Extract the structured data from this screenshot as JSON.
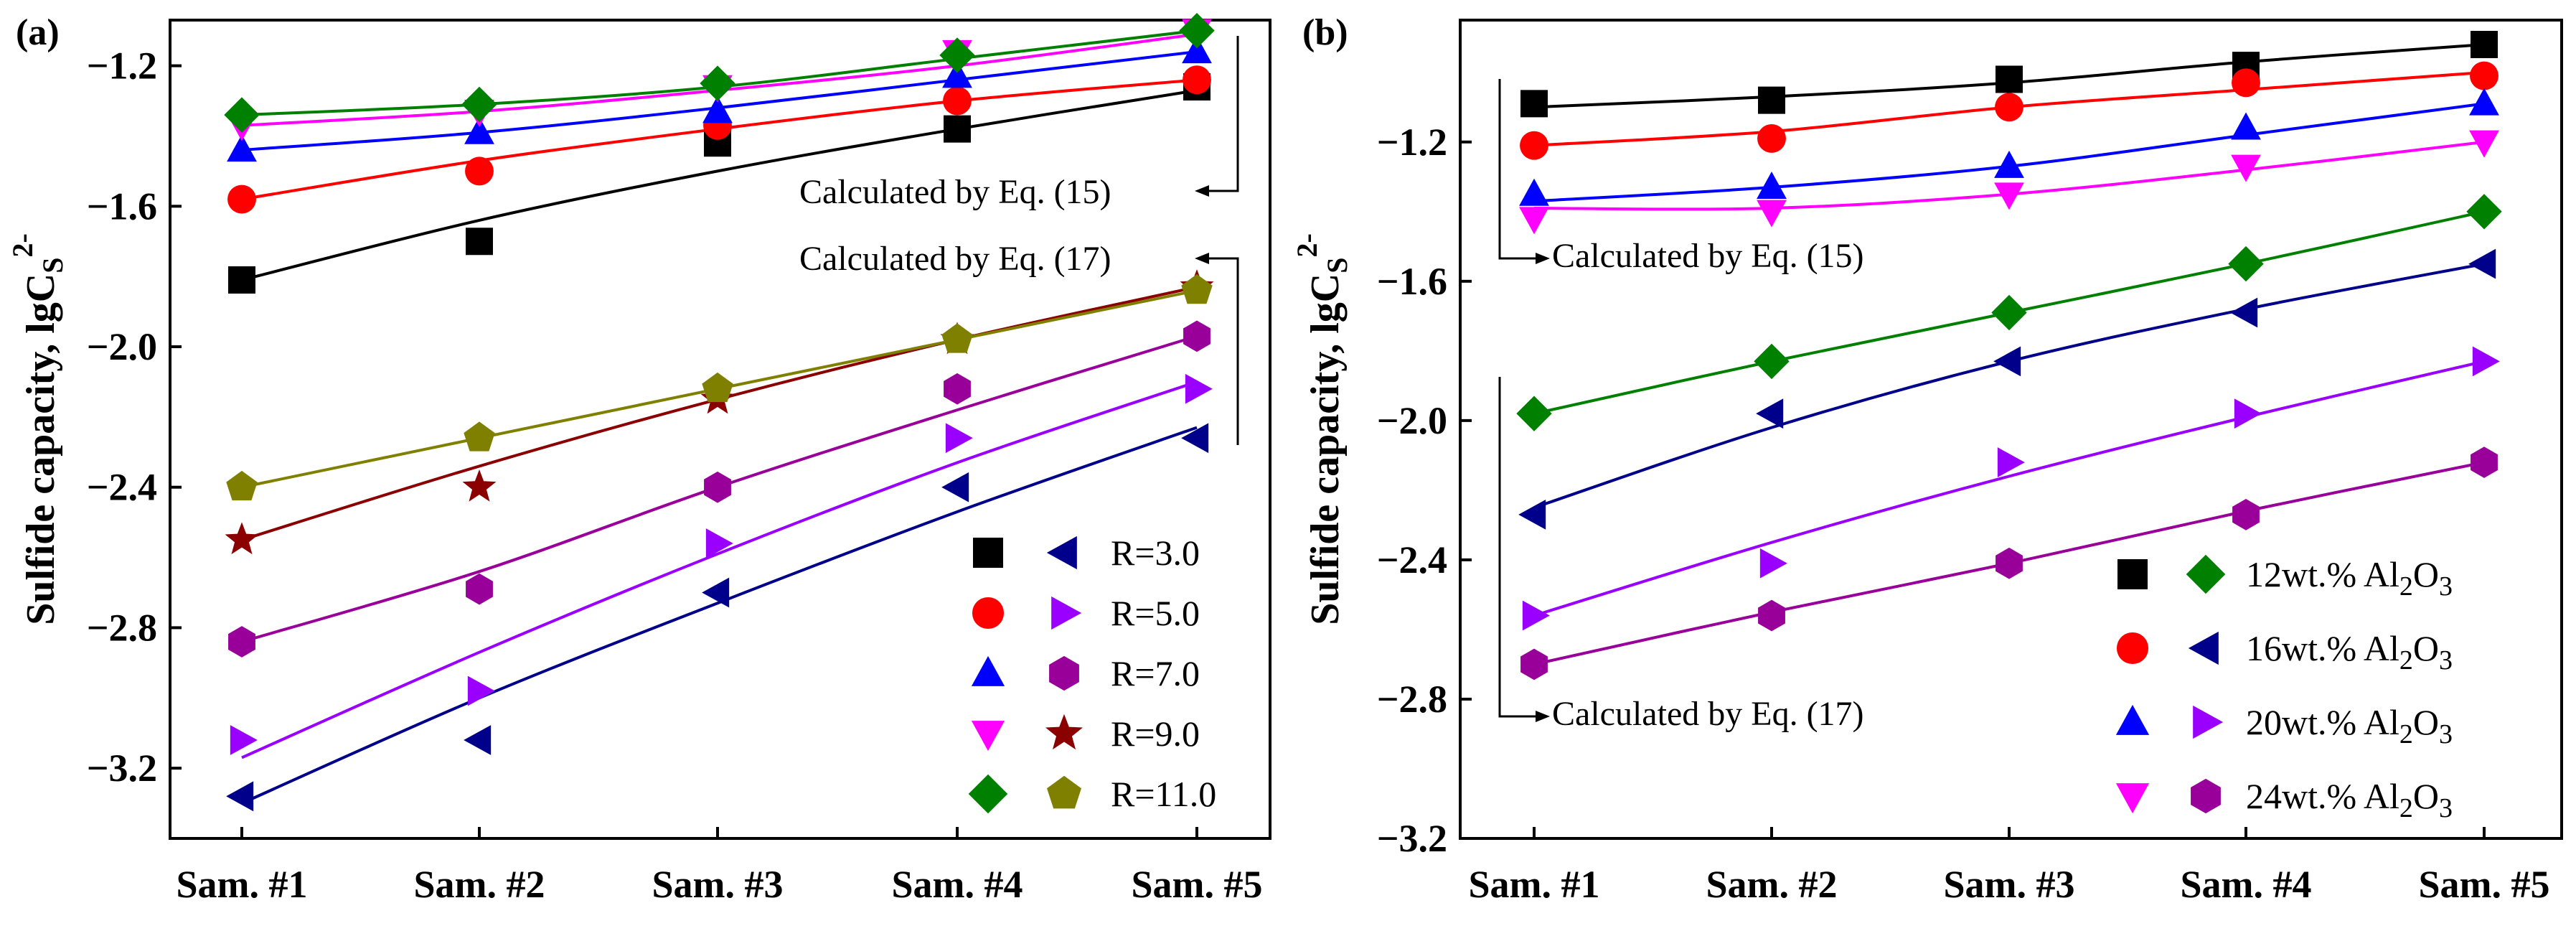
{
  "chart_data": [
    {
      "type": "scatter",
      "panel": "(a)",
      "title": "",
      "xlabel": "",
      "ylabel": "Sulfide capacity, lgC",
      "ylabel_sub": "S",
      "ylabel_sup": "2-",
      "categories": [
        "Sam. #1",
        "Sam. #2",
        "Sam. #3",
        "Sam. #4",
        "Sam. #5"
      ],
      "ylim": [
        -3.4,
        -1.07
      ],
      "yticks": [
        -3.2,
        -2.8,
        -2.4,
        -2.0,
        -1.6,
        -1.2
      ],
      "ytick_labels": [
        "−3.2",
        "−2.8",
        "−2.4",
        "−2.0",
        "−1.6",
        "−1.2"
      ],
      "series": [
        {
          "name": "R=3.0 (Eq.15)",
          "marker": "square",
          "color": "#000000",
          "values": [
            -1.81,
            -1.7,
            -1.42,
            -1.38,
            -1.26
          ],
          "fit": [
            -1.81,
            -1.64,
            -1.5,
            -1.38,
            -1.27
          ]
        },
        {
          "name": "R=5.0 (Eq.15)",
          "marker": "circle",
          "color": "#ff0000",
          "values": [
            -1.58,
            -1.5,
            -1.37,
            -1.3,
            -1.24
          ],
          "fit": [
            -1.58,
            -1.47,
            -1.38,
            -1.3,
            -1.24
          ]
        },
        {
          "name": "R=7.0 (Eq.15)",
          "marker": "triangle-up",
          "color": "#0000ff",
          "values": [
            -1.44,
            -1.39,
            -1.33,
            -1.23,
            -1.16
          ],
          "fit": [
            -1.44,
            -1.39,
            -1.32,
            -1.24,
            -1.16
          ]
        },
        {
          "name": "R=9.0 (Eq.15)",
          "marker": "triangle-down",
          "color": "#ff00ff",
          "values": [
            -1.37,
            -1.33,
            -1.26,
            -1.16,
            -1.1
          ],
          "fit": [
            -1.37,
            -1.33,
            -1.27,
            -1.2,
            -1.11
          ]
        },
        {
          "name": "R=11.0 (Eq.15)",
          "marker": "diamond",
          "color": "#008000",
          "values": [
            -1.34,
            -1.31,
            -1.25,
            -1.17,
            -1.1
          ],
          "fit": [
            -1.34,
            -1.31,
            -1.26,
            -1.18,
            -1.1
          ]
        },
        {
          "name": "R=3.0 (Eq.17)",
          "marker": "triangle-left",
          "color": "#00008b",
          "values": [
            -3.28,
            -3.12,
            -2.7,
            -2.4,
            -2.26
          ],
          "fit": [
            -3.3,
            -3.0,
            -2.73,
            -2.47,
            -2.23
          ]
        },
        {
          "name": "R=5.0 (Eq.17)",
          "marker": "triangle-right",
          "color": "#9900ff",
          "values": [
            -3.12,
            -2.98,
            -2.56,
            -2.26,
            -2.12
          ],
          "fit": [
            -3.17,
            -2.87,
            -2.59,
            -2.33,
            -2.1
          ]
        },
        {
          "name": "R=7.0 (Eq.17)",
          "marker": "hexagon",
          "color": "#990099",
          "values": [
            -2.84,
            -2.69,
            -2.4,
            -2.12,
            -1.97
          ],
          "fit": [
            -2.84,
            -2.64,
            -2.4,
            -2.18,
            -1.97
          ]
        },
        {
          "name": "R=9.0 (Eq.17)",
          "marker": "star",
          "color": "#8b0000",
          "values": [
            -2.55,
            -2.4,
            -2.15,
            -1.98,
            -1.83
          ],
          "fit": [
            -2.55,
            -2.34,
            -2.15,
            -1.98,
            -1.83
          ]
        },
        {
          "name": "R=11.0 (Eq.17)",
          "marker": "pentagon",
          "color": "#808000",
          "values": [
            -2.4,
            -2.26,
            -2.12,
            -1.98,
            -1.84
          ],
          "fit": [
            -2.4,
            -2.26,
            -2.12,
            -1.98,
            -1.84
          ]
        }
      ],
      "legend": {
        "placement": "bottom-right",
        "entries": [
          {
            "label": "R=3.0",
            "markers": [
              "square",
              "triangle-left"
            ],
            "colors": [
              "#000000",
              "#00008b"
            ]
          },
          {
            "label": "R=5.0",
            "markers": [
              "circle",
              "triangle-right"
            ],
            "colors": [
              "#ff0000",
              "#9900ff"
            ]
          },
          {
            "label": "R=7.0",
            "markers": [
              "triangle-up",
              "hexagon"
            ],
            "colors": [
              "#0000ff",
              "#990099"
            ]
          },
          {
            "label": "R=9.0",
            "markers": [
              "triangle-down",
              "star"
            ],
            "colors": [
              "#ff00ff",
              "#8b0000"
            ]
          },
          {
            "label": "R=11.0",
            "markers": [
              "diamond",
              "pentagon"
            ],
            "colors": [
              "#008000",
              "#808000"
            ]
          }
        ]
      },
      "annotations": [
        "Calculated by Eq. (15)",
        "Calculated by Eq. (17)"
      ]
    },
    {
      "type": "scatter",
      "panel": "(b)",
      "title": "",
      "xlabel": "",
      "ylabel": "Sulfide capacity, lgC",
      "ylabel_sub": "S",
      "ylabel_sup": "2-",
      "categories": [
        "Sam. #1",
        "Sam. #2",
        "Sam. #3",
        "Sam. #4",
        "Sam. #5"
      ],
      "ylim": [
        -3.2,
        -0.85
      ],
      "yticks": [
        -3.2,
        -2.8,
        -2.4,
        -2.0,
        -1.6,
        -1.2
      ],
      "ytick_labels": [
        "−3.2",
        "−2.8",
        "−2.4",
        "−2.0",
        "−1.6",
        "−1.2"
      ],
      "series": [
        {
          "name": "12wt.% Al2O3 (Eq.15)",
          "marker": "square",
          "color": "#000000",
          "values": [
            -1.09,
            -1.08,
            -1.02,
            -0.98,
            -0.92
          ],
          "fit": [
            -1.1,
            -1.07,
            -1.03,
            -0.97,
            -0.92
          ]
        },
        {
          "name": "16wt.% Al2O3 (Eq.15)",
          "marker": "circle",
          "color": "#ff0000",
          "values": [
            -1.21,
            -1.19,
            -1.1,
            -1.03,
            -1.01
          ],
          "fit": [
            -1.21,
            -1.17,
            -1.1,
            -1.05,
            -1.0
          ]
        },
        {
          "name": "20wt.% Al2O3 (Eq.15)",
          "marker": "triangle-up",
          "color": "#0000ff",
          "values": [
            -1.35,
            -1.33,
            -1.27,
            -1.16,
            -1.09
          ],
          "fit": [
            -1.37,
            -1.33,
            -1.27,
            -1.18,
            -1.09
          ]
        },
        {
          "name": "24wt.% Al2O3 (Eq.15)",
          "marker": "triangle-down",
          "color": "#ff00ff",
          "values": [
            -1.42,
            -1.4,
            -1.35,
            -1.27,
            -1.2
          ],
          "fit": [
            -1.39,
            -1.39,
            -1.35,
            -1.28,
            -1.2
          ]
        },
        {
          "name": "12wt.% Al2O3 (Eq.17)",
          "marker": "diamond",
          "color": "#008000",
          "values": [
            -1.98,
            -1.83,
            -1.69,
            -1.55,
            -1.4
          ],
          "fit": [
            -1.98,
            -1.83,
            -1.69,
            -1.55,
            -1.4
          ]
        },
        {
          "name": "16wt.% Al2O3 (Eq.17)",
          "marker": "triangle-left",
          "color": "#00008b",
          "values": [
            -2.27,
            -1.98,
            -1.83,
            -1.69,
            -1.55
          ],
          "fit": [
            -2.25,
            -2.02,
            -1.83,
            -1.68,
            -1.55
          ]
        },
        {
          "name": "20wt.% Al2O3 (Eq.17)",
          "marker": "triangle-right",
          "color": "#9900ff",
          "values": [
            -2.56,
            -2.41,
            -2.12,
            -1.98,
            -1.83
          ],
          "fit": [
            -2.56,
            -2.35,
            -2.16,
            -1.99,
            -1.83
          ]
        },
        {
          "name": "24wt.% Al2O3 (Eq.17)",
          "marker": "hexagon",
          "color": "#990099",
          "values": [
            -2.7,
            -2.56,
            -2.41,
            -2.27,
            -2.12
          ],
          "fit": [
            -2.7,
            -2.55,
            -2.41,
            -2.26,
            -2.12
          ]
        }
      ],
      "legend": {
        "placement": "bottom-right",
        "entries": [
          {
            "label": "12wt.% Al",
            "sub1": "2",
            "mid": "O",
            "sub2": "3",
            "markers": [
              "square",
              "diamond"
            ],
            "colors": [
              "#000000",
              "#008000"
            ]
          },
          {
            "label": "16wt.% Al",
            "sub1": "2",
            "mid": "O",
            "sub2": "3",
            "markers": [
              "circle",
              "triangle-left"
            ],
            "colors": [
              "#ff0000",
              "#00008b"
            ]
          },
          {
            "label": "20wt.% Al",
            "sub1": "2",
            "mid": "O",
            "sub2": "3",
            "markers": [
              "triangle-up",
              "triangle-right"
            ],
            "colors": [
              "#0000ff",
              "#9900ff"
            ]
          },
          {
            "label": "24wt.% Al",
            "sub1": "2",
            "mid": "O",
            "sub2": "3",
            "markers": [
              "triangle-down",
              "hexagon"
            ],
            "colors": [
              "#ff00ff",
              "#990099"
            ]
          }
        ]
      },
      "annotations": [
        "Calculated by Eq. (15)",
        "Calculated by Eq. (17)"
      ]
    }
  ]
}
